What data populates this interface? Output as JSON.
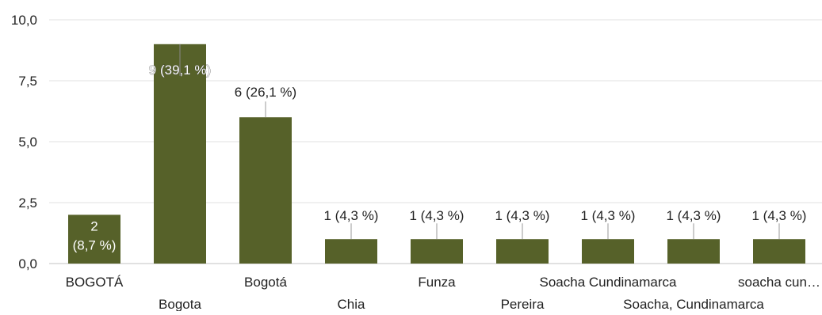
{
  "chart_data": {
    "type": "bar",
    "title": "",
    "xlabel": "",
    "ylabel": "",
    "ylim": [
      0,
      10
    ],
    "yticks": [
      "0,0",
      "2,5",
      "5,0",
      "7,5",
      "10,0"
    ],
    "ytick_values": [
      0,
      2.5,
      5,
      7.5,
      10
    ],
    "grid": true,
    "legend": "none",
    "categories": [
      "BOGOTÁ",
      "Bogota",
      "Bogotá",
      "Chia",
      "Funza",
      "Pereira",
      "Soacha Cundinamarca",
      "Soacha, Cundinamarca",
      "soacha cun…"
    ],
    "values": [
      2,
      9,
      6,
      1,
      1,
      1,
      1,
      1,
      1
    ],
    "data_labels": [
      "2 (8,7 %)",
      "9 (39,1 %)",
      "6 (26,1 %)",
      "1 (4,3 %)",
      "1 (4,3 %)",
      "1 (4,3 %)",
      "1 (4,3 %)",
      "1 (4,3 %)",
      "1 (4,3 %)"
    ],
    "bar_color": "#566129",
    "grid_color": "#e6e6e6"
  }
}
